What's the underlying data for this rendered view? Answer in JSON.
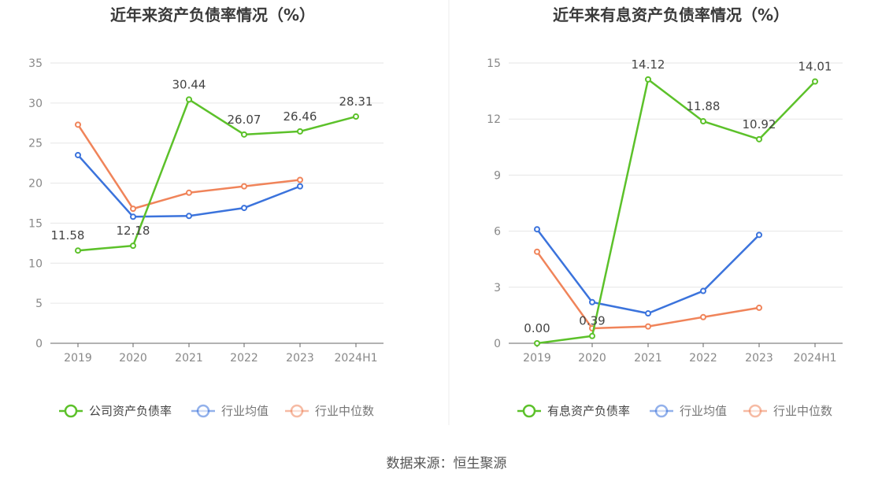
{
  "source_text": "数据来源：恒生聚源",
  "chart_data": [
    {
      "type": "line",
      "title": "近年来资产负债率情况（%）",
      "categories": [
        "2019",
        "2020",
        "2021",
        "2022",
        "2023",
        "2024H1"
      ],
      "ylim": [
        0,
        35
      ],
      "yticks": [
        "0",
        "5",
        "10",
        "15",
        "20",
        "25",
        "30",
        "35"
      ],
      "grid": true,
      "legend_position": "bottom",
      "series": [
        {
          "name": "公司资产负债率",
          "color": "#5cc12a",
          "values": [
            11.58,
            12.18,
            30.44,
            26.07,
            26.46,
            28.31
          ],
          "labels": [
            "11.58",
            "12.18",
            "30.44",
            "26.07",
            "26.46",
            "28.31"
          ]
        },
        {
          "name": "行业均值",
          "color": "#3b73dc",
          "values": [
            23.5,
            15.8,
            15.9,
            16.9,
            19.6,
            null
          ]
        },
        {
          "name": "行业中位数",
          "color": "#f0845a",
          "values": [
            27.3,
            16.8,
            18.8,
            19.6,
            20.4,
            null
          ]
        }
      ]
    },
    {
      "type": "line",
      "title": "近年来有息资产负债率情况（%）",
      "categories": [
        "2019",
        "2020",
        "2021",
        "2022",
        "2023",
        "2024H1"
      ],
      "ylim": [
        0,
        15
      ],
      "yticks": [
        "0",
        "3",
        "6",
        "9",
        "12",
        "15"
      ],
      "grid": true,
      "legend_position": "bottom",
      "series": [
        {
          "name": "有息资产负债率",
          "color": "#5cc12a",
          "values": [
            0.0,
            0.39,
            14.12,
            11.88,
            10.92,
            14.01
          ],
          "labels": [
            "0.00",
            "0.39",
            "14.12",
            "11.88",
            "10.92",
            "14.01"
          ]
        },
        {
          "name": "行业均值",
          "color": "#3b73dc",
          "values": [
            6.1,
            2.2,
            1.6,
            2.8,
            5.8,
            null
          ]
        },
        {
          "name": "行业中位数",
          "color": "#f0845a",
          "values": [
            4.9,
            0.8,
            0.9,
            1.4,
            1.9,
            null
          ]
        }
      ]
    }
  ]
}
